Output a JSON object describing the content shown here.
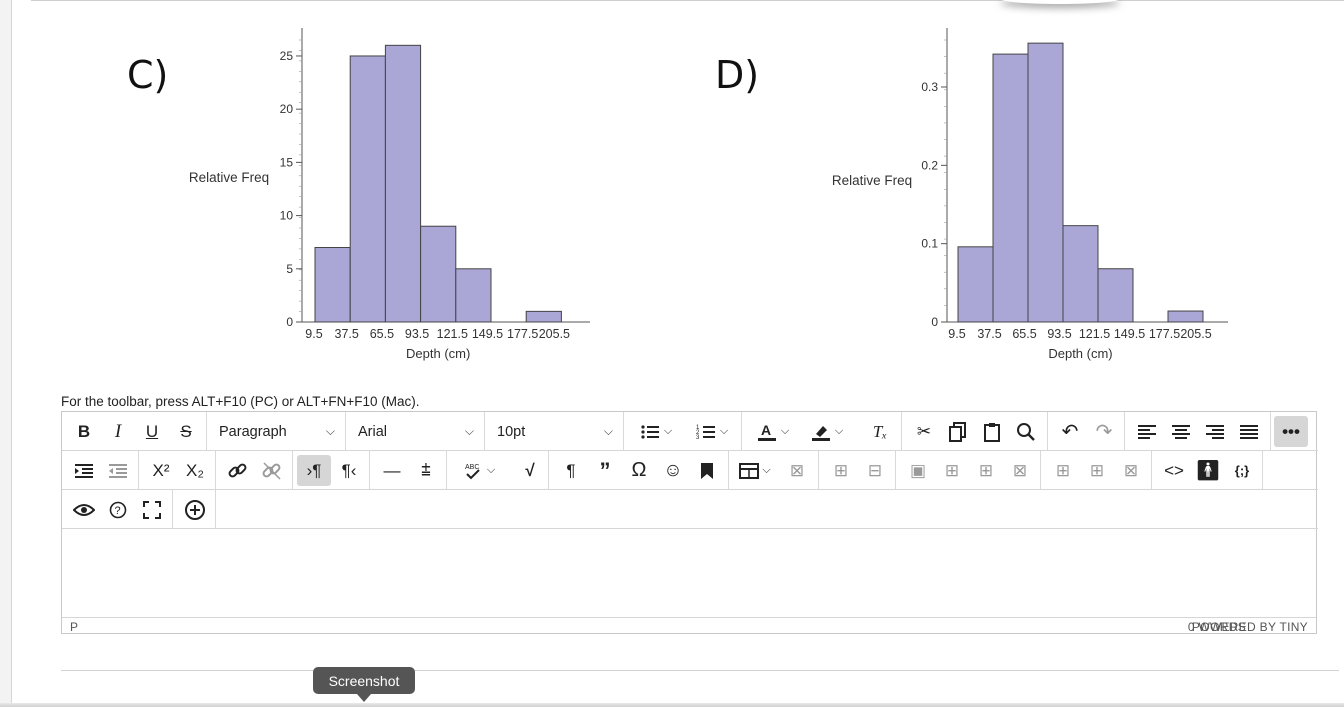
{
  "panels": {
    "c": {
      "letter": "C)",
      "chart_data": {
        "type": "bar",
        "ylabel": "Relative Freq",
        "xlabel": "Depth (cm)",
        "x_ticks": [
          "9.5",
          "37.5",
          "65.5",
          "93.5",
          "121.5",
          "149.5",
          "177.5",
          "205.5"
        ],
        "y_ticks": [
          "0",
          "5",
          "10",
          "15",
          "20",
          "25"
        ],
        "ylim": [
          0,
          26.5
        ],
        "values": [
          7,
          25,
          26,
          9,
          5,
          0,
          1
        ],
        "bar_color": "#aaa6d6"
      }
    },
    "d": {
      "letter": "D)",
      "chart_data": {
        "type": "bar",
        "ylabel": "Relative Freq",
        "xlabel": "Depth (cm)",
        "x_ticks": [
          "9.5",
          "37.5",
          "65.5",
          "93.5",
          "121.5",
          "149.5",
          "177.5",
          "205.5"
        ],
        "y_ticks": [
          "0",
          "0.1",
          "0.2",
          "0.3"
        ],
        "ylim": [
          0,
          0.36
        ],
        "values": [
          0.096,
          0.342,
          0.356,
          0.123,
          0.068,
          0,
          0.014
        ],
        "bar_color": "#aaa6d6"
      }
    }
  },
  "hint": "For the toolbar, press ALT+F10 (PC) or ALT+FN+F10 (Mac).",
  "toolbar": {
    "block_format": "Paragraph",
    "font_family": "Arial",
    "font_size": "10pt",
    "abc_label": "ABC"
  },
  "statusbar": {
    "path": "P",
    "words": "0 WORDS",
    "brand": "POWERED BY TINY"
  },
  "tooltip": "Screenshot",
  "colors": {
    "active_button": "#d6d6d6",
    "tooltip_bg": "#555555"
  }
}
